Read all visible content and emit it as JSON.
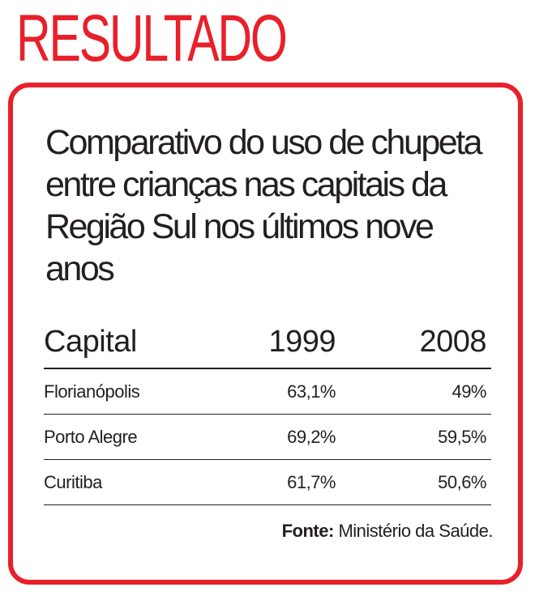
{
  "header": {
    "title": "RESULTADO"
  },
  "colors": {
    "accent": "#e8202a",
    "text": "#231f20"
  },
  "chart_data": {
    "type": "table",
    "title": "Comparativo do uso de chupeta entre crianças nas capitais da Região Sul nos últimos nove anos",
    "columns": [
      "Capital",
      "1999",
      "2008"
    ],
    "rows": [
      {
        "capital": "Florianópolis",
        "y1999": "63,1%",
        "y2008": "49%"
      },
      {
        "capital": "Porto Alegre",
        "y1999": "69,2%",
        "y2008": "59,5%"
      },
      {
        "capital": "Curitiba",
        "y1999": "61,7%",
        "y2008": "50,6%"
      }
    ],
    "source_label": "Fonte:",
    "source": "Ministério da Saúde."
  }
}
